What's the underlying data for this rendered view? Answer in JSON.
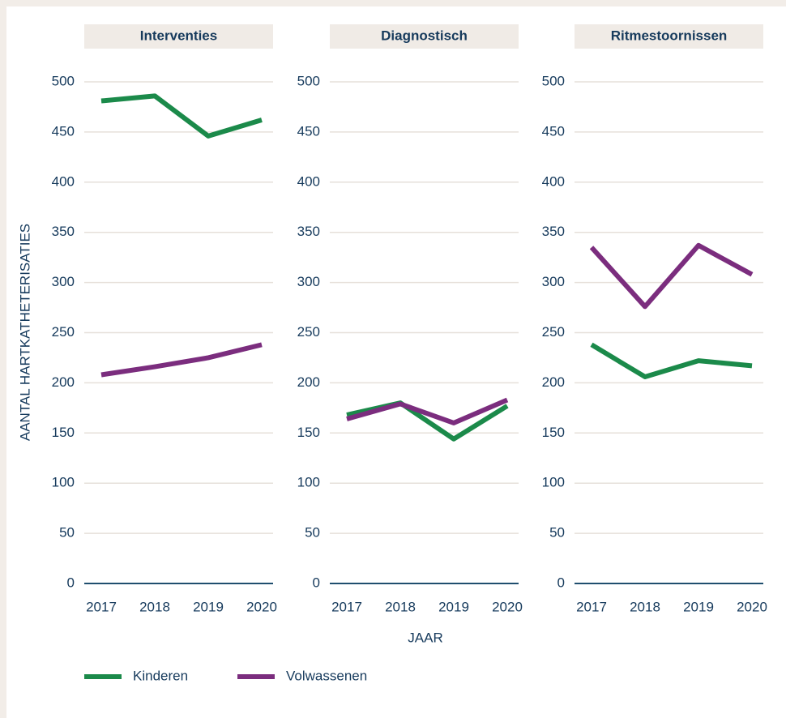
{
  "chart_data": [
    {
      "type": "line",
      "title": "Interventies",
      "ylabel": "AANTAL HARTKATHETERISATIES",
      "categories": [
        "2017",
        "2018",
        "2019",
        "2020"
      ],
      "series": [
        {
          "name": "Kinderen",
          "color": "#1b8a4a",
          "values": [
            481,
            486,
            446,
            462
          ]
        },
        {
          "name": "Volwassenen",
          "color": "#7b2d7e",
          "values": [
            208,
            216,
            225,
            238
          ]
        }
      ],
      "ylim": [
        0,
        500
      ],
      "yticks": [
        0,
        50,
        100,
        150,
        200,
        250,
        300,
        350,
        400,
        450,
        500
      ],
      "grid": true
    },
    {
      "type": "line",
      "title": "Diagnostisch",
      "xlabel": "JAAR",
      "categories": [
        "2017",
        "2018",
        "2019",
        "2020"
      ],
      "series": [
        {
          "name": "Kinderen",
          "color": "#1b8a4a",
          "values": [
            168,
            180,
            144,
            177
          ]
        },
        {
          "name": "Volwassenen",
          "color": "#7b2d7e",
          "values": [
            164,
            179,
            160,
            183
          ]
        }
      ],
      "ylim": [
        0,
        500
      ],
      "yticks": [
        0,
        50,
        100,
        150,
        200,
        250,
        300,
        350,
        400,
        450,
        500
      ],
      "grid": true
    },
    {
      "type": "line",
      "title": "Ritmestoornissen",
      "categories": [
        "2017",
        "2018",
        "2019",
        "2020"
      ],
      "series": [
        {
          "name": "Kinderen",
          "color": "#1b8a4a",
          "values": [
            238,
            206,
            222,
            217
          ]
        },
        {
          "name": "Volwassenen",
          "color": "#7b2d7e",
          "values": [
            335,
            276,
            337,
            308
          ]
        }
      ],
      "ylim": [
        0,
        500
      ],
      "yticks": [
        0,
        50,
        100,
        150,
        200,
        250,
        300,
        350,
        400,
        450,
        500
      ],
      "grid": true
    }
  ]
}
